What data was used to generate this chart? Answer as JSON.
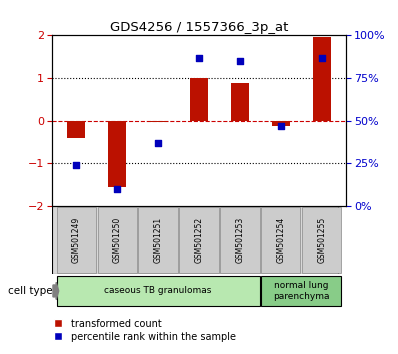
{
  "title": "GDS4256 / 1557366_3p_at",
  "samples": [
    "GSM501249",
    "GSM501250",
    "GSM501251",
    "GSM501252",
    "GSM501253",
    "GSM501254",
    "GSM501255"
  ],
  "transformed_count": [
    -0.42,
    -1.57,
    -0.03,
    1.0,
    0.88,
    -0.13,
    1.97
  ],
  "percentile_rank": [
    24,
    10,
    37,
    87,
    85,
    47,
    87
  ],
  "bar_color": "#bb1100",
  "dot_color": "#0000bb",
  "ylim_left": [
    -2,
    2
  ],
  "ylim_right": [
    0,
    100
  ],
  "yticks_left": [
    -2,
    -1,
    0,
    1,
    2
  ],
  "yticks_right": [
    0,
    25,
    50,
    75,
    100
  ],
  "yticklabels_right": [
    "0%",
    "25%",
    "50%",
    "75%",
    "100%"
  ],
  "hline_dotted": [
    -1,
    1
  ],
  "hline_zero_color": "#cc0000",
  "hline_dotted_color": "black",
  "cell_groups": [
    {
      "label": "caseous TB granulomas",
      "indices": [
        0,
        1,
        2,
        3,
        4
      ],
      "color": "#b8e8b0"
    },
    {
      "label": "normal lung\nparenchyma",
      "indices": [
        5,
        6
      ],
      "color": "#88cc88"
    }
  ],
  "cell_type_label": "cell type",
  "legend_red": "transformed count",
  "legend_blue": "percentile rank within the sample",
  "bar_width": 0.45,
  "background_color": "#ffffff",
  "tick_label_color_left": "#cc0000",
  "tick_label_color_right": "#0000cc",
  "sample_box_color": "#cccccc",
  "sample_box_edge": "#888888"
}
